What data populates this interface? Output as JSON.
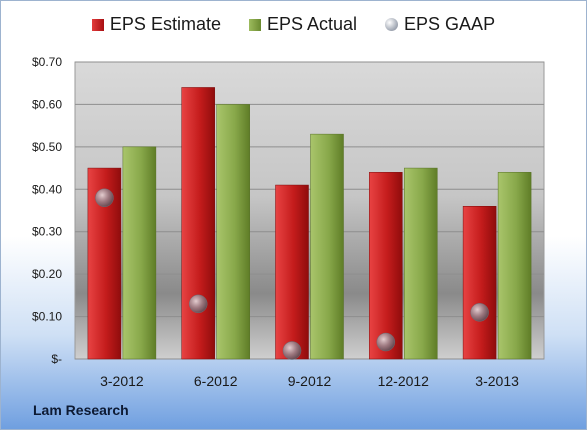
{
  "company": "Lam Research",
  "chart_data": {
    "type": "bar",
    "categories": [
      "3-2012",
      "6-2012",
      "9-2012",
      "12-2012",
      "3-2013"
    ],
    "series": [
      {
        "name": "EPS Estimate",
        "kind": "bar",
        "values": [
          0.45,
          0.64,
          0.41,
          0.44,
          0.36
        ],
        "color": "#c81e1e"
      },
      {
        "name": "EPS Actual",
        "kind": "bar",
        "values": [
          0.5,
          0.6,
          0.53,
          0.45,
          0.44
        ],
        "color": "#8aac4c"
      },
      {
        "name": "EPS GAAP",
        "kind": "scatter",
        "values": [
          0.38,
          0.13,
          0.02,
          0.04,
          0.11
        ],
        "color": "#9aa0aa"
      }
    ],
    "ylim": [
      0,
      0.7
    ],
    "yticks": [
      0,
      0.1,
      0.2,
      0.3,
      0.4,
      0.5,
      0.6,
      0.7
    ],
    "ytick_labels": [
      "$-",
      "$0.10",
      "$0.20",
      "$0.30",
      "$0.40",
      "$0.50",
      "$0.60",
      "$0.70"
    ],
    "grid": true,
    "legend_position": "top"
  }
}
